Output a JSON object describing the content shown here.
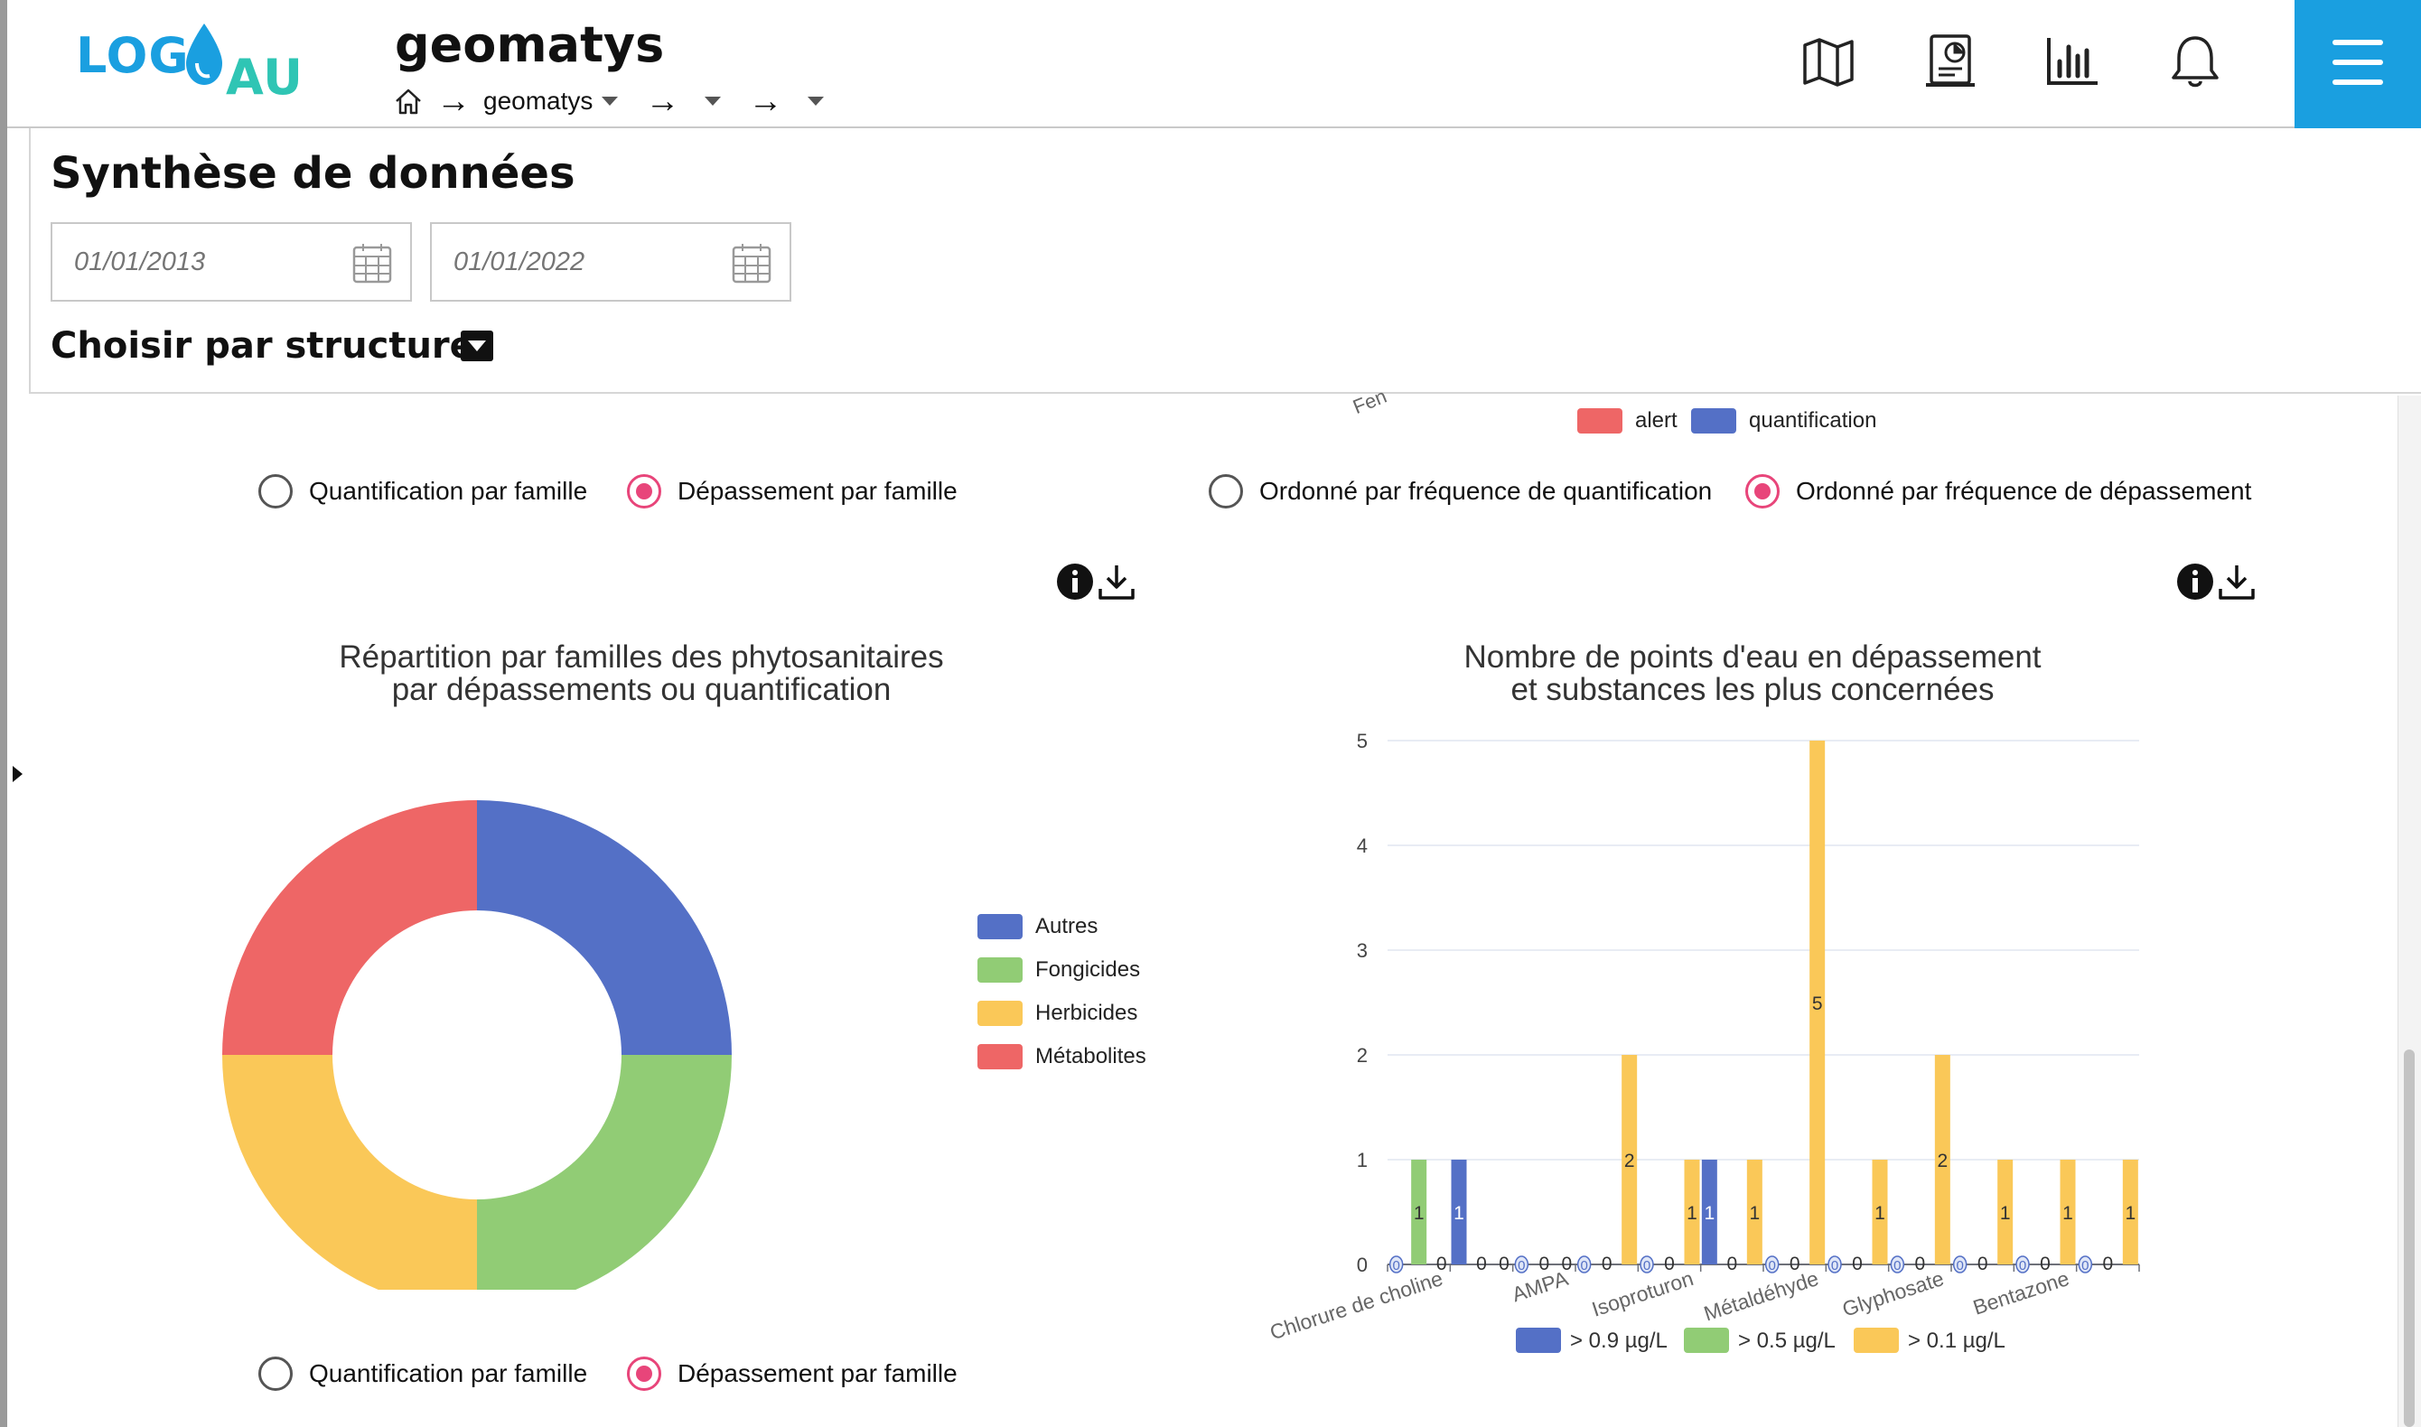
{
  "header": {
    "logo_part1": "LOG",
    "logo_part2": "AU",
    "org_title": "geomatys",
    "breadcrumb": {
      "org": "geomatys"
    },
    "icons": [
      "map-icon",
      "report-icon",
      "bar-chart-icon",
      "bell-icon",
      "menu-icon"
    ]
  },
  "controls": {
    "page_title": "Synthèse de données",
    "date_start": "01/01/2013",
    "date_end": "01/01/2022",
    "structure_label": "Choisir par structure"
  },
  "partial_legend": {
    "label_fragment": "Fen",
    "items": [
      "alert",
      "quantification"
    ],
    "colors": [
      "#ee6666",
      "#5470c6"
    ]
  },
  "left_panel": {
    "radio_quant": "Quantification par famille",
    "radio_dep": "Dépassement par famille",
    "selected": "Dépassement par famille"
  },
  "right_panel": {
    "radio_quant": "Ordonné par fréquence de quantification",
    "radio_dep": "Ordonné par fréquence de dépassement",
    "selected": "Ordonné par fréquence de dépassement"
  },
  "chart_data": [
    {
      "type": "pie",
      "donut": true,
      "title_line1": "Répartition par familles des phytosanitaires",
      "title_line2": "par dépassements ou quantification",
      "labels": [
        "Autres",
        "Fongicides",
        "Herbicides",
        "Métabolites"
      ],
      "values": [
        1,
        1,
        1,
        1
      ],
      "colors": [
        "#5470c6",
        "#91cc75",
        "#fac858",
        "#ee6666"
      ],
      "legend_position": "right"
    },
    {
      "type": "bar",
      "title_line1": "Nombre de points d'eau en dépassement",
      "title_line2": "et substances les plus concernées",
      "categories": [
        "Chlorure de choline",
        "",
        "AMPA",
        "",
        "Isoproturon",
        "",
        "Métaldéhyde",
        "",
        "Glyphosate",
        "",
        "Bentazone",
        ""
      ],
      "series": [
        {
          "name": "> 0.9 µg/L",
          "color": "#5470c6",
          "values": [
            0,
            1,
            0,
            0,
            0,
            1,
            0,
            0,
            0,
            0,
            0,
            0
          ]
        },
        {
          "name": "> 0.5 µg/L",
          "color": "#91cc75",
          "values": [
            1,
            0,
            0,
            0,
            0,
            0,
            0,
            0,
            0,
            0,
            0,
            0
          ]
        },
        {
          "name": "> 0.1 µg/L",
          "color": "#fac858",
          "values": [
            0,
            0,
            0,
            2,
            1,
            1,
            5,
            1,
            2,
            1,
            1,
            1
          ]
        }
      ],
      "ylim": [
        0,
        5
      ],
      "yticks": [
        0,
        1,
        2,
        3,
        4,
        5
      ],
      "grid": true,
      "legend_position": "bottom"
    }
  ],
  "bottom_panel": {
    "radio_quant": "Quantification par famille",
    "radio_dep": "Dépassement par famille",
    "selected": "Dépassement par famille"
  }
}
